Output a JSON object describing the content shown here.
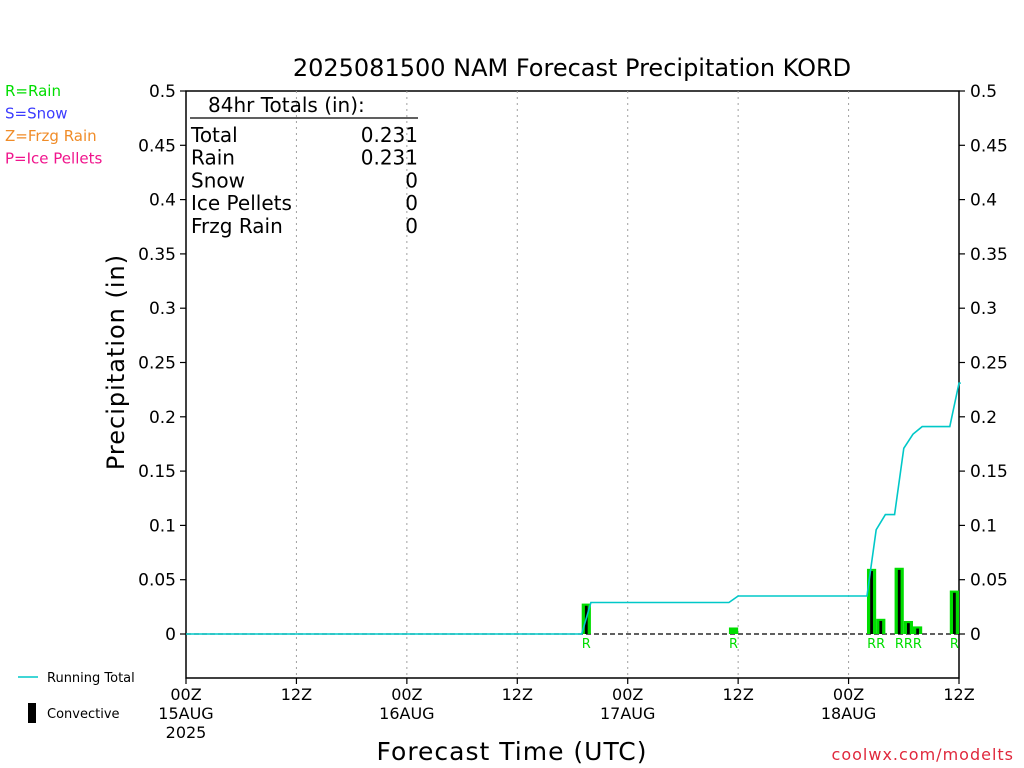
{
  "chart_data": {
    "type": "bar",
    "title": "2025081500 NAM Forecast Precipitation KORD",
    "xlabel": "Forecast Time (UTC)",
    "ylabel": "Precipitation (in)",
    "ylim": [
      -0.04,
      0.5
    ],
    "xlim_hours": [
      0,
      84
    ],
    "y_ticks": [
      "0.5",
      "0.45",
      "0.4",
      "0.35",
      "0.3",
      "0.25",
      "0.2",
      "0.15",
      "0.1",
      "0.05",
      "0"
    ],
    "y_tick_values": [
      0.5,
      0.45,
      0.4,
      0.35,
      0.3,
      0.25,
      0.2,
      0.15,
      0.1,
      0.05,
      0
    ],
    "x_ticks": [
      {
        "hour": 0,
        "label": "00Z",
        "sub": "15AUG",
        "sub2": "2025"
      },
      {
        "hour": 12,
        "label": "12Z",
        "sub": "",
        "sub2": ""
      },
      {
        "hour": 24,
        "label": "00Z",
        "sub": "16AUG",
        "sub2": ""
      },
      {
        "hour": 36,
        "label": "12Z",
        "sub": "",
        "sub2": ""
      },
      {
        "hour": 48,
        "label": "00Z",
        "sub": "17AUG",
        "sub2": ""
      },
      {
        "hour": 60,
        "label": "12Z",
        "sub": "",
        "sub2": ""
      },
      {
        "hour": 72,
        "label": "00Z",
        "sub": "18AUG",
        "sub2": ""
      },
      {
        "hour": 84,
        "label": "12Z",
        "sub": "",
        "sub2": ""
      }
    ],
    "grid_hours": [
      12,
      24,
      36,
      48,
      60,
      72
    ],
    "bars": [
      {
        "hour": 44,
        "total": 0.028,
        "convective": 0.026,
        "type": "R"
      },
      {
        "hour": 60,
        "total": 0.006,
        "convective": 0.0,
        "type": "R"
      },
      {
        "hour": 75,
        "total": 0.06,
        "convective": 0.058,
        "type": "R"
      },
      {
        "hour": 76,
        "total": 0.014,
        "convective": 0.012,
        "type": "R"
      },
      {
        "hour": 78,
        "total": 0.061,
        "convective": 0.059,
        "type": "R"
      },
      {
        "hour": 79,
        "total": 0.012,
        "convective": 0.01,
        "type": "R"
      },
      {
        "hour": 80,
        "total": 0.007,
        "convective": 0.005,
        "type": "R"
      },
      {
        "hour": 84,
        "total": 0.04,
        "convective": 0.038,
        "type": "R"
      }
    ],
    "running_total": {
      "name": "Running Total",
      "x": [
        0,
        43,
        44,
        59,
        60,
        74,
        75,
        76,
        77,
        78,
        79,
        80,
        83,
        84,
        84.2
      ],
      "y": [
        0,
        0,
        0.029,
        0.029,
        0.035,
        0.035,
        0.096,
        0.11,
        0.11,
        0.171,
        0.184,
        0.191,
        0.191,
        0.231,
        0.231
      ]
    },
    "bar_labels": [
      {
        "hour": 44,
        "text": "R"
      },
      {
        "hour": 60,
        "text": "R"
      },
      {
        "hour": 75.5,
        "text": "RR"
      },
      {
        "hour": 79,
        "text": "RRR"
      },
      {
        "hour": 84,
        "text": "R"
      }
    ],
    "totals_box": {
      "title": "84hr Totals (in):",
      "rows": [
        {
          "label": "Total",
          "value": "0.231"
        },
        {
          "label": "Rain",
          "value": "0.231"
        },
        {
          "label": "Snow",
          "value": "0"
        },
        {
          "label": "Ice Pellets",
          "value": "0"
        },
        {
          "label": "Frzg Rain",
          "value": "0"
        }
      ]
    },
    "type_legend": [
      {
        "text": "R=Rain",
        "color": "#00dd00"
      },
      {
        "text": "S=Snow",
        "color": "#3c3cff"
      },
      {
        "text": "Z=Frzg Rain",
        "color": "#f08c28"
      },
      {
        "text": "P=Ice Pellets",
        "color": "#f0148c"
      }
    ],
    "legend": {
      "running_total": "Running Total",
      "convective": "Convective"
    },
    "credit": "coolwx.com/modelts",
    "colors": {
      "rain": "#00dd00",
      "convective": "#000000",
      "running_total": "#00c8c8",
      "grid": "#a0a0a0",
      "credit": "#e0283c"
    },
    "grid": true,
    "legend_position": "left"
  }
}
